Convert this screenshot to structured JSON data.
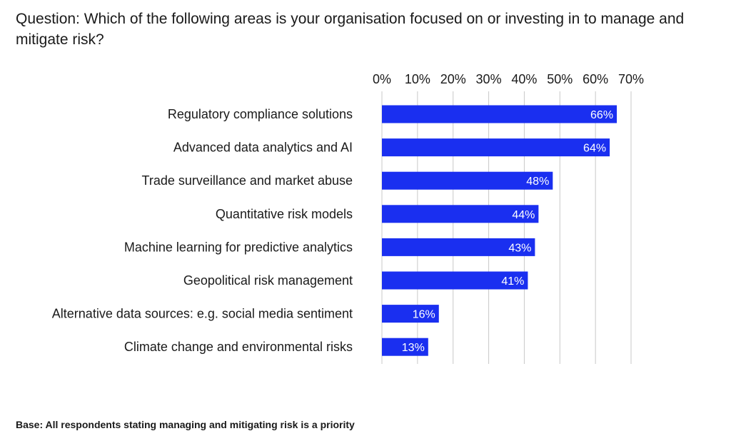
{
  "question": "Question: Which of the following areas is your organisation focused on or investing in to manage and mitigate risk?",
  "footnote": "Base: All respondents stating managing and mitigating risk is a priority",
  "colors": {
    "bar": "#1a2ff0",
    "label_on_bar": "#ffffff",
    "grid": "#c8c8c8"
  },
  "chart_data": {
    "type": "bar",
    "orientation": "horizontal",
    "categories": [
      "Regulatory compliance solutions",
      "Advanced data analytics and AI",
      "Trade surveillance and market abuse",
      "Quantitative risk models",
      "Machine learning for predictive analytics",
      "Geopolitical risk management",
      "Alternative data sources: e.g. social media sentiment",
      "Climate change and environmental risks"
    ],
    "values": [
      66,
      64,
      48,
      44,
      43,
      41,
      16,
      13
    ],
    "value_labels": [
      "66%",
      "64%",
      "48%",
      "44%",
      "43%",
      "41%",
      "16%",
      "13%"
    ],
    "x_ticks": [
      "0%",
      "10%",
      "20%",
      "30%",
      "40%",
      "50%",
      "60%",
      "70%"
    ],
    "xlim": [
      0,
      70
    ],
    "axis_position": "top",
    "grid": true,
    "legend": false
  }
}
